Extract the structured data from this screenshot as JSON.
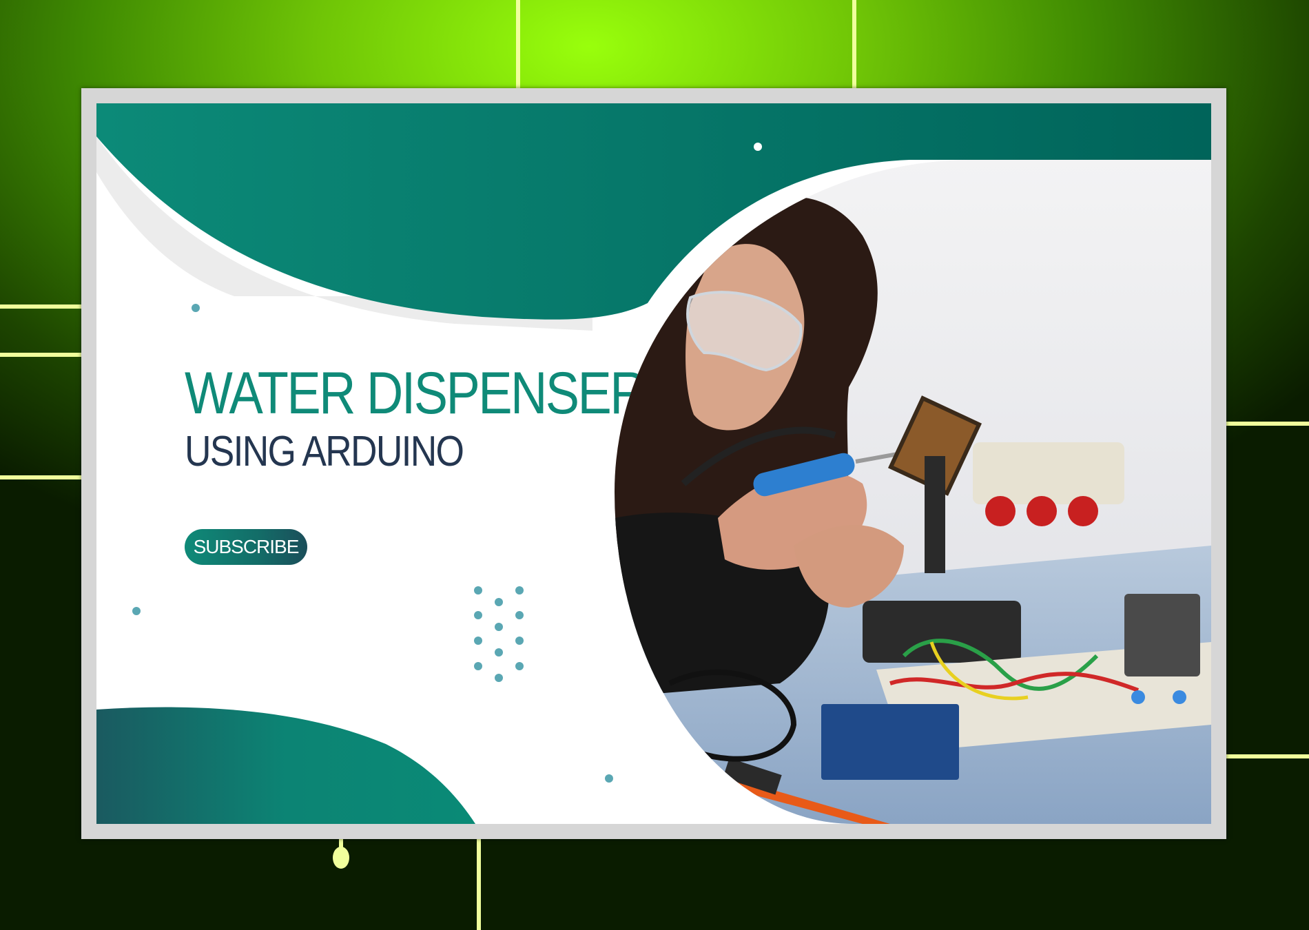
{
  "thumbnail": {
    "title": "WATER DISPENSER",
    "subtitle": "USING ARDUINO",
    "subscribe_label": "SUBSCRIBE"
  },
  "colors": {
    "accent": "#0f8a78",
    "accent_dark": "#006a5f",
    "subtitle_text": "#243650",
    "frame": "#d6d6d6",
    "background_glow": "#99ff0c",
    "grid_lines": "#f0ff9c"
  },
  "photo": {
    "subject": "photo-woman-soldering-electronics"
  }
}
